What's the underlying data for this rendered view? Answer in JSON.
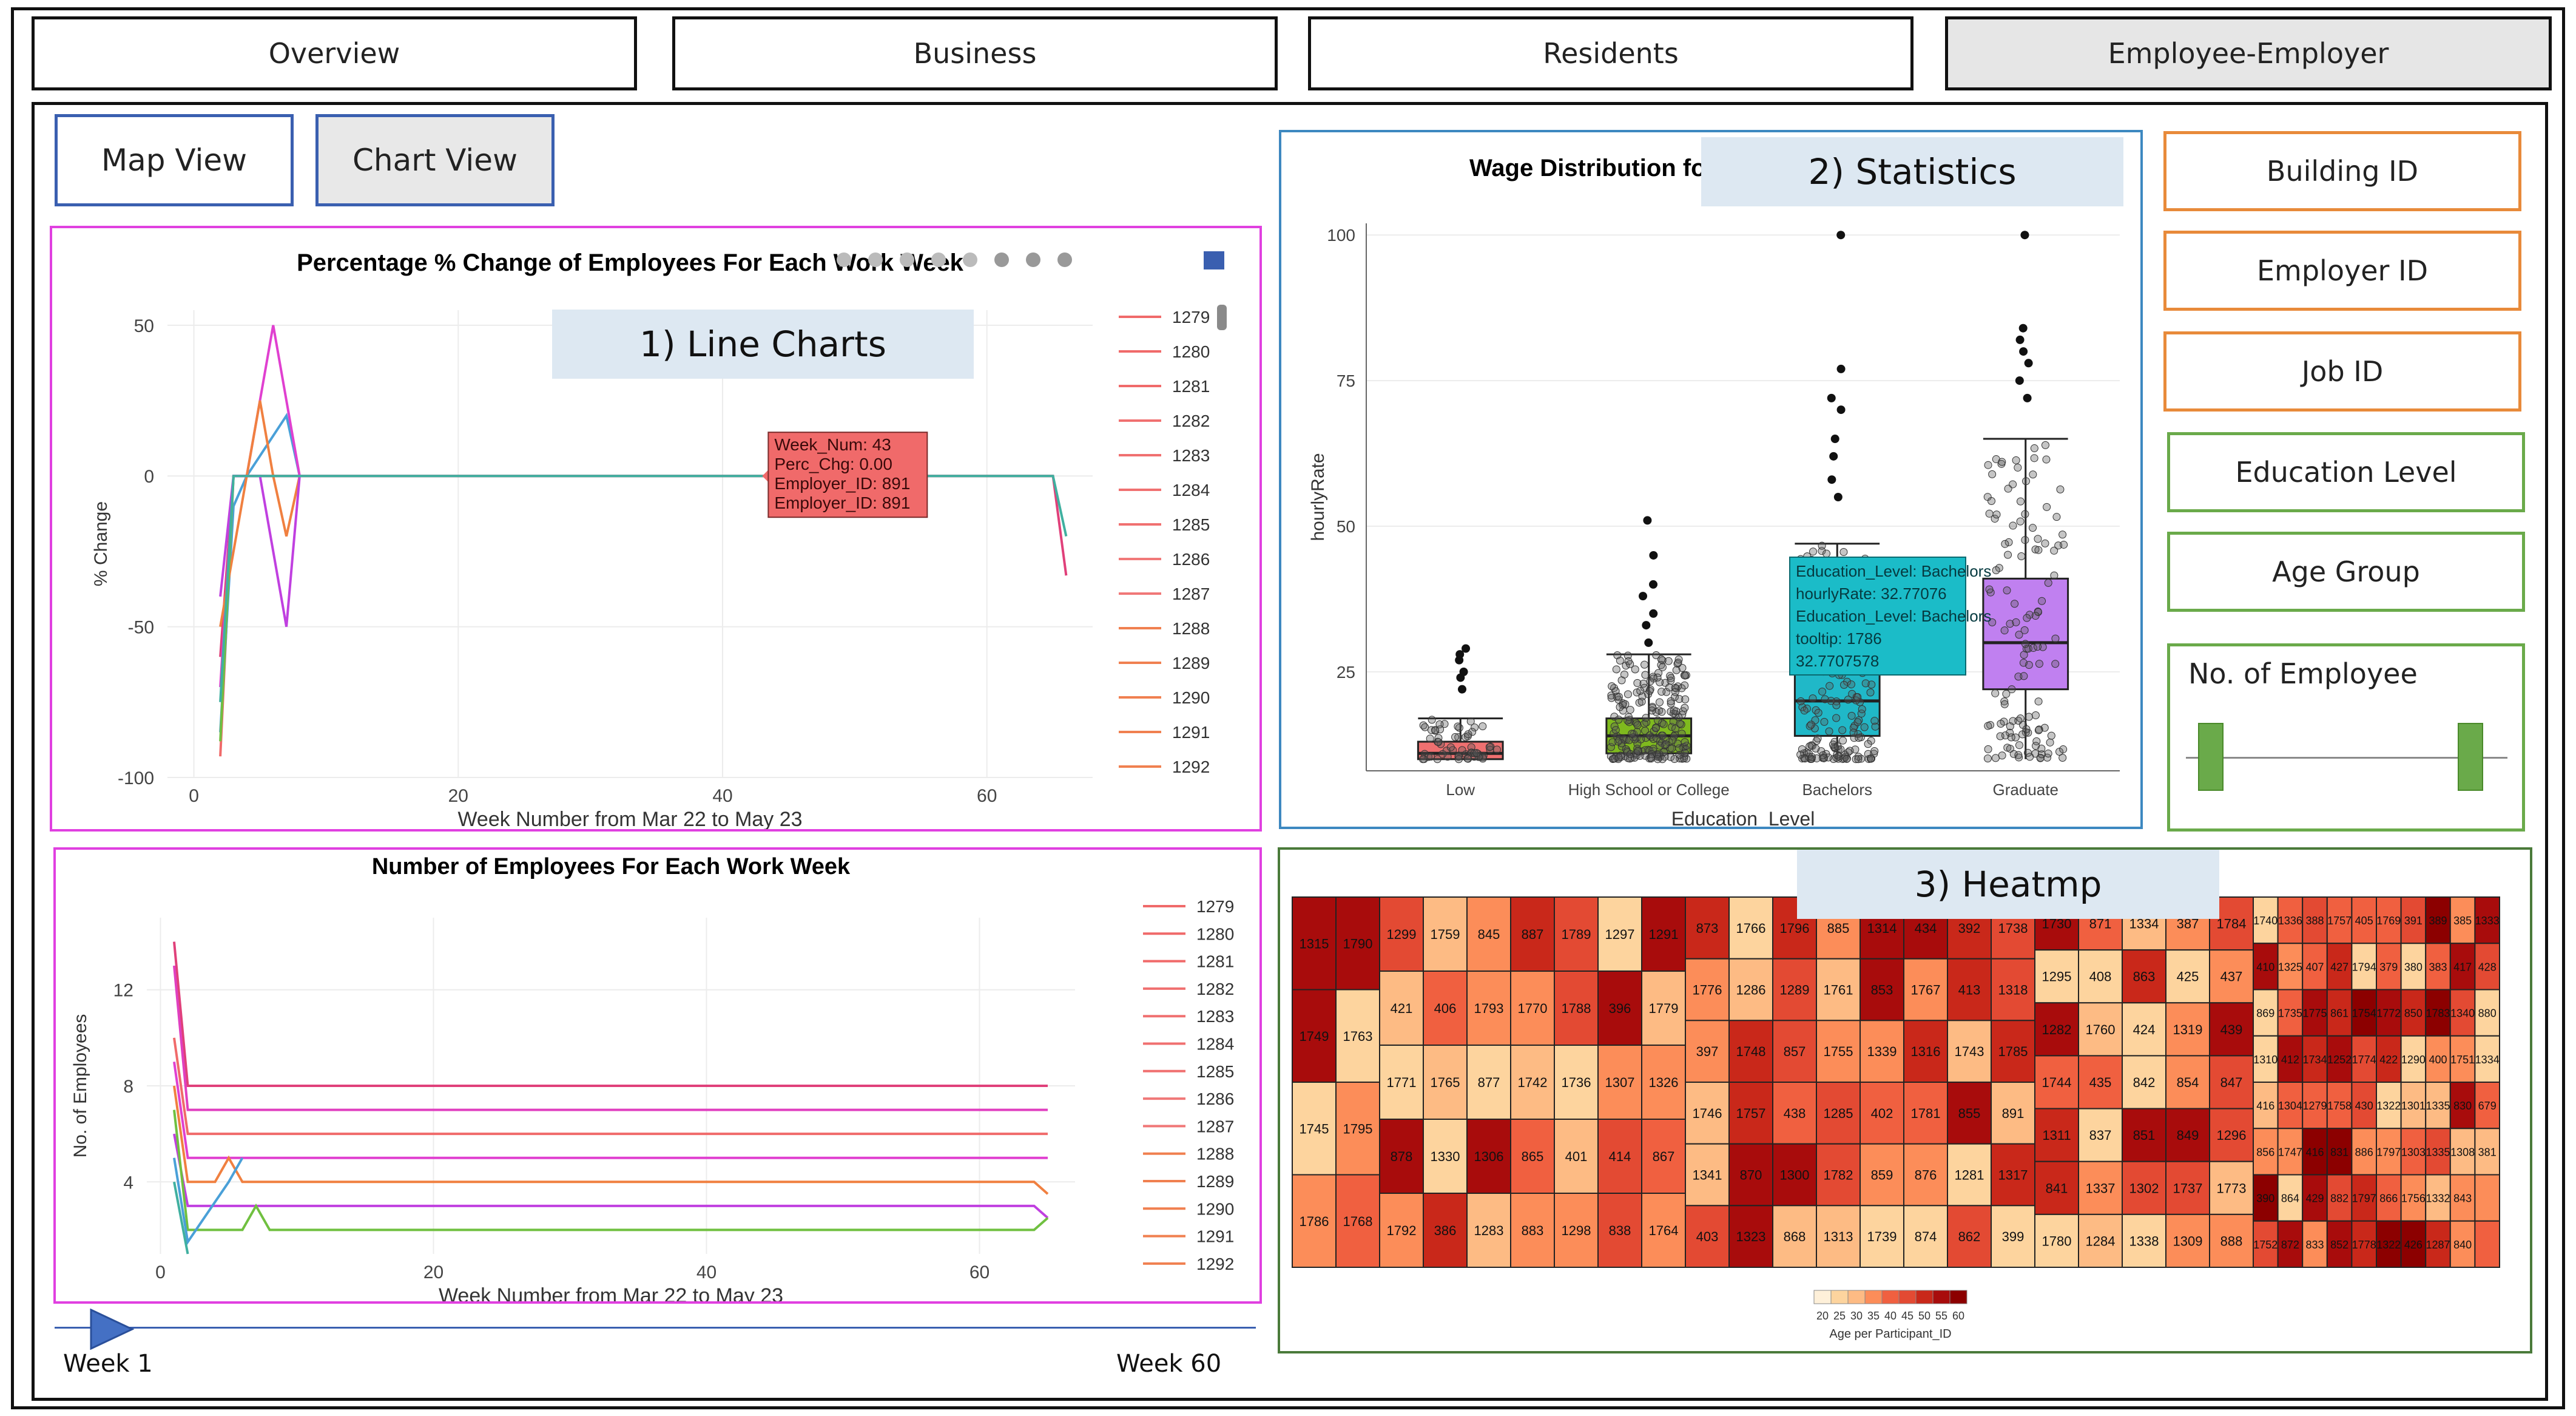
{
  "tabs": {
    "overview": "Overview",
    "business": "Business",
    "residents": "Residents",
    "employee_employer": "Employee-Employer"
  },
  "views": {
    "map": "Map View",
    "chart": "Chart View"
  },
  "callouts": {
    "line": "1) Line Charts",
    "stats": "2) Statistics",
    "heat": "3) Heatmp"
  },
  "filters": {
    "building": "Building ID",
    "employer": "Employer ID",
    "job": "Job ID",
    "education": "Education Level",
    "age": "Age Group",
    "num_emp": "No. of Employee"
  },
  "slider": {
    "start": "Week 1",
    "end": "Week 60"
  },
  "colors": {
    "accent_blue": "#3a5fb0",
    "magenta": "#e040e0",
    "orange": "#e88a3a",
    "green": "#6aaa4a",
    "tooltip_red": "#f06a6a",
    "tooltip_teal": "#1bbcc8"
  },
  "chart_data": [
    {
      "type": "line",
      "title": "Percentage % Change of Employees For Each Work Week",
      "xlabel": "Week Number from Mar 22 to May 23",
      "ylabel": "% Change",
      "xlim": [
        -2,
        68
      ],
      "ylim": [
        -100,
        55
      ],
      "xticks": [
        0,
        20,
        40,
        60
      ],
      "yticks": [
        50,
        0,
        -50,
        -100
      ],
      "legend": [
        "1279",
        "1280",
        "1281",
        "1282",
        "1283",
        "1284",
        "1285",
        "1286",
        "1287",
        "1288",
        "1289",
        "1290",
        "1291",
        "1292"
      ],
      "series": [
        {
          "name": "1280",
          "color": "#f06a6a",
          "points": [
            [
              2,
              -93
            ],
            [
              3,
              0
            ],
            [
              65,
              0
            ]
          ]
        },
        {
          "name": "1281",
          "color": "#e0407a",
          "points": [
            [
              2,
              -60
            ],
            [
              3,
              0
            ],
            [
              8,
              0
            ],
            [
              65,
              0
            ],
            [
              66,
              -33
            ]
          ]
        },
        {
          "name": "1282",
          "color": "#4aa0d8",
          "points": [
            [
              2,
              -85
            ],
            [
              3,
              -10
            ],
            [
              4,
              0
            ],
            [
              7,
              20
            ],
            [
              8,
              0
            ]
          ]
        },
        {
          "name": "1283",
          "color": "#e040d0",
          "points": [
            [
              2,
              -70
            ],
            [
              3,
              0
            ],
            [
              4,
              0
            ],
            [
              6,
              50
            ],
            [
              8,
              0
            ]
          ]
        },
        {
          "name": "1284",
          "color": "#f08040",
          "points": [
            [
              2,
              -50
            ],
            [
              4,
              0
            ],
            [
              5,
              25
            ],
            [
              6,
              0
            ],
            [
              7,
              -20
            ],
            [
              8,
              0
            ]
          ]
        },
        {
          "name": "1285",
          "color": "#c040e0",
          "points": [
            [
              2,
              -40
            ],
            [
              3,
              0
            ],
            [
              5,
              0
            ],
            [
              7,
              -50
            ],
            [
              8,
              0
            ]
          ]
        },
        {
          "name": "1286",
          "color": "#70c040",
          "points": [
            [
              2,
              -88
            ],
            [
              3,
              0
            ]
          ]
        },
        {
          "name": "1287",
          "color": "#40b0a0",
          "points": [
            [
              2,
              -75
            ],
            [
              3,
              0
            ],
            [
              65,
              0
            ],
            [
              66,
              -20
            ]
          ]
        }
      ],
      "tooltip": [
        "Week_Num: 43",
        "Perc_Chg:   0.00",
        "Employer_ID: 891",
        "Employer_ID: 891"
      ]
    },
    {
      "type": "line",
      "title": "Number of Employees For Each Work Week",
      "xlabel": "Week Number from Mar 22 to May 23",
      "ylabel": "No. of Employees",
      "xlim": [
        -1,
        67
      ],
      "ylim": [
        1,
        15
      ],
      "xticks": [
        0,
        20,
        40,
        60
      ],
      "yticks": [
        12,
        8,
        4
      ],
      "legend": [
        "1279",
        "1280",
        "1281",
        "1282",
        "1283",
        "1284",
        "1285",
        "1286",
        "1287",
        "1288",
        "1289",
        "1290",
        "1291",
        "1292"
      ],
      "series": [
        {
          "name": "1280",
          "color": "#e0407a",
          "points": [
            [
              1,
              14
            ],
            [
              2,
              8
            ],
            [
              65,
              8
            ]
          ]
        },
        {
          "name": "1281",
          "color": "#e040c0",
          "points": [
            [
              1,
              13
            ],
            [
              2,
              7
            ],
            [
              65,
              7
            ]
          ]
        },
        {
          "name": "1282",
          "color": "#f06a6a",
          "points": [
            [
              1,
              10
            ],
            [
              2,
              6
            ],
            [
              65,
              6
            ]
          ]
        },
        {
          "name": "1283",
          "color": "#e040d0",
          "points": [
            [
              1,
              9
            ],
            [
              2,
              5
            ],
            [
              65,
              5
            ]
          ]
        },
        {
          "name": "1284",
          "color": "#f08040",
          "points": [
            [
              1,
              8
            ],
            [
              2,
              4
            ],
            [
              4,
              4
            ],
            [
              5,
              5
            ],
            [
              6,
              4
            ],
            [
              64,
              4
            ],
            [
              65,
              3.5
            ]
          ]
        },
        {
          "name": "1285",
          "color": "#c040e0",
          "points": [
            [
              1,
              6
            ],
            [
              2,
              3
            ],
            [
              64,
              3
            ],
            [
              65,
              2.5
            ]
          ]
        },
        {
          "name": "1286",
          "color": "#70c040",
          "points": [
            [
              1,
              7
            ],
            [
              2,
              2
            ],
            [
              6,
              2
            ],
            [
              7,
              3
            ],
            [
              8,
              2
            ],
            [
              64,
              2
            ],
            [
              65,
              2.5
            ]
          ]
        },
        {
          "name": "1287",
          "color": "#4aa0d8",
          "points": [
            [
              1,
              5
            ],
            [
              2,
              1.5
            ],
            [
              5,
              4
            ],
            [
              6,
              5
            ]
          ]
        },
        {
          "name": "1288",
          "color": "#40b0a0",
          "points": [
            [
              1,
              4
            ],
            [
              2,
              1
            ]
          ]
        }
      ]
    },
    {
      "type": "box",
      "title": "Wage Distribution fo",
      "xlabel": "Education_Level",
      "ylabel": "hourlyRate",
      "ylim": [
        8,
        102
      ],
      "yticks": [
        100,
        75,
        50,
        25
      ],
      "categories": [
        "Low",
        "High School or College",
        "Bachelors",
        "Graduate"
      ],
      "colors": [
        "#f07070",
        "#7fba1e",
        "#20b8c8",
        "#c080f0"
      ],
      "boxes": [
        {
          "q1": 10,
          "median": 11,
          "q3": 13,
          "lo": 10,
          "hi": 17,
          "outliers": [
            22,
            24,
            25,
            27,
            28,
            29
          ]
        },
        {
          "q1": 11,
          "median": 14,
          "q3": 17,
          "lo": 10,
          "hi": 28,
          "outliers": [
            30,
            33,
            35,
            38,
            40,
            45,
            51
          ]
        },
        {
          "q1": 14,
          "median": 20,
          "q3": 28,
          "lo": 10,
          "hi": 47,
          "outliers": [
            55,
            58,
            62,
            65,
            70,
            72,
            77,
            100
          ]
        },
        {
          "q1": 22,
          "median": 30,
          "q3": 41,
          "lo": 10,
          "hi": 65,
          "outliers": [
            72,
            75,
            78,
            80,
            82,
            84,
            100
          ]
        }
      ],
      "tooltip": [
        "Education_Level: Bachelors",
        "hourlyRate:  32.77076",
        "Education_Level: Bachelors",
        "tooltip: 1786",
        "32.7707578"
      ]
    },
    {
      "type": "heatmap",
      "xlabel": "Age per Participant_ID",
      "legend_ticks": [
        "20",
        "25",
        "30",
        "35",
        "40",
        "45",
        "50",
        "55",
        "60"
      ],
      "columns": [
        [
          "1315",
          "1749",
          "1745",
          "1786"
        ],
        [
          "1790",
          "1763",
          "1795",
          "1768"
        ],
        [
          "1299",
          "421",
          "1771",
          "878",
          "1792"
        ],
        [
          "1759",
          "406",
          "1765",
          "1330",
          "386"
        ],
        [
          "845",
          "1793",
          "877",
          "1306",
          "1283"
        ],
        [
          "887",
          "1770",
          "1742",
          "865",
          "883"
        ],
        [
          "1789",
          "1788",
          "1736",
          "401",
          "1298"
        ],
        [
          "1297",
          "396",
          "1307",
          "414",
          "838"
        ],
        [
          "1291",
          "1779",
          "1326",
          "867",
          "1764"
        ],
        [
          "873",
          "1776",
          "397",
          "1746",
          "1341",
          "403"
        ],
        [
          "1766",
          "1286",
          "1748",
          "1757",
          "870",
          "1323"
        ],
        [
          "1796",
          "1289",
          "857",
          "438",
          "1300",
          "868"
        ],
        [
          "885",
          "1761",
          "1755",
          "1285",
          "1782",
          "1313"
        ],
        [
          "1314",
          "853",
          "1339",
          "402",
          "859",
          "1739"
        ],
        [
          "434",
          "1767",
          "1316",
          "1781",
          "876",
          "874"
        ],
        [
          "392",
          "413",
          "1743",
          "855",
          "1281",
          "862"
        ],
        [
          "1738",
          "1318",
          "1785",
          "891",
          "1317",
          "399"
        ],
        [
          "1730",
          "1295",
          "1282",
          "1744",
          "1311",
          "841",
          "1780"
        ],
        [
          "871",
          "408",
          "1760",
          "435",
          "837",
          "1337",
          "1284"
        ],
        [
          "1334",
          "863",
          "424",
          "842",
          "851",
          "1302",
          "1338"
        ],
        [
          "387",
          "425",
          "1319",
          "854",
          "849",
          "1737",
          "1309"
        ],
        [
          "1784",
          "437",
          "439",
          "847",
          "1296",
          "1773",
          "888"
        ]
      ],
      "dense_labels": [
        "1740",
        "410",
        "869",
        "1310",
        "416",
        "856",
        "390",
        "1752",
        "1336",
        "1325",
        "1735",
        "412",
        "1304",
        "1747",
        "864",
        "872",
        "388",
        "407",
        "1775",
        "1734",
        "1279",
        "416",
        "429",
        "833",
        "1757",
        "427",
        "861",
        "1252",
        "1758",
        "831",
        "882",
        "852",
        "405",
        "1794",
        "1754",
        "1774",
        "430",
        "886",
        "1797",
        "1778",
        "1769",
        "379",
        "1772",
        "422",
        "1322",
        "1797",
        "866",
        "1322",
        "391",
        "380",
        "850",
        "1290",
        "1301",
        "1303",
        "1756",
        "426",
        "389",
        "383",
        "1783",
        "400",
        "1335",
        "1335",
        "1332",
        "1287",
        "385",
        "417",
        "1340",
        "1751",
        "830",
        "1308",
        "843",
        "840",
        "1333",
        "428",
        "880",
        "1334",
        "679",
        "381"
      ]
    }
  ]
}
